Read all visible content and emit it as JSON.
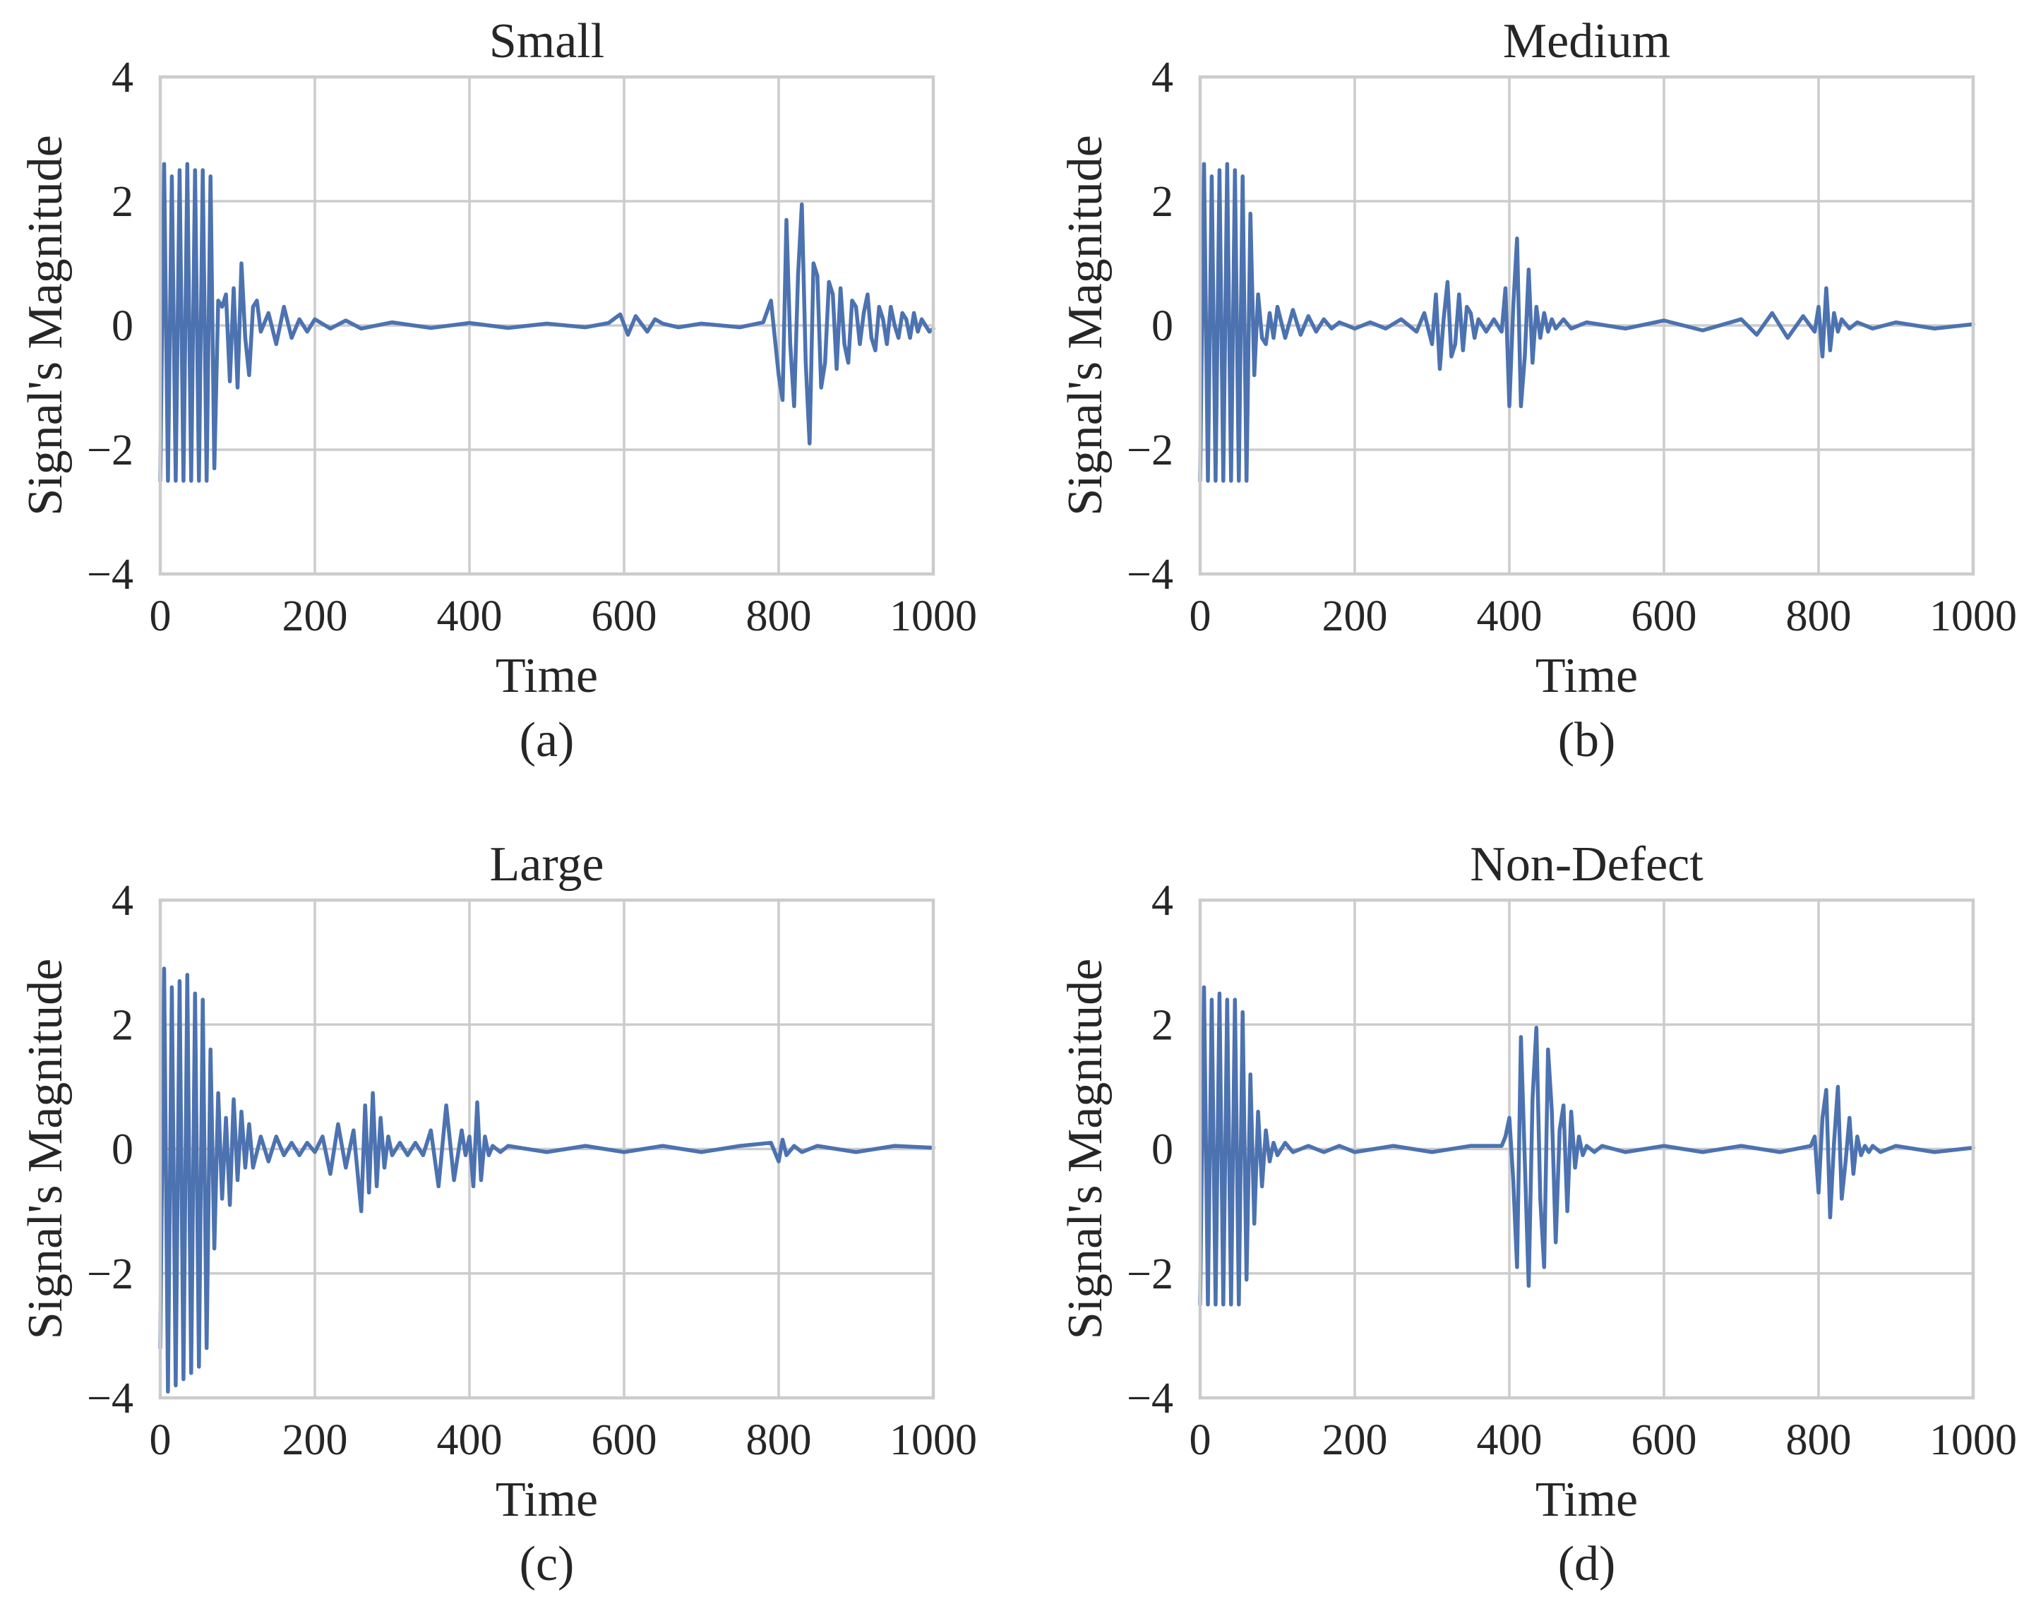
{
  "figure_title": "",
  "chart_data": [
    {
      "type": "line",
      "panel": "(a)",
      "title": "Small",
      "xlabel": "Time",
      "ylabel": "Signal's Magnitude",
      "xlim": [
        0,
        1000
      ],
      "ylim": [
        -4,
        4
      ],
      "xticks": [
        0,
        200,
        400,
        600,
        800,
        1000
      ],
      "yticks": [
        4,
        2,
        0,
        -2,
        -4
      ],
      "xtick_labels": [
        "0",
        "200",
        "400",
        "600",
        "800",
        "1000"
      ],
      "ytick_labels": [
        "4",
        "2",
        "0",
        "−2",
        "−4"
      ],
      "grid": true,
      "line_color": "#4c72b0",
      "series": [
        {
          "name": "signal",
          "x": [
            0,
            5,
            10,
            15,
            20,
            25,
            30,
            35,
            40,
            45,
            50,
            55,
            60,
            65,
            70,
            75,
            80,
            85,
            90,
            95,
            100,
            105,
            110,
            115,
            120,
            125,
            130,
            140,
            150,
            160,
            170,
            180,
            190,
            200,
            220,
            240,
            260,
            300,
            350,
            400,
            450,
            500,
            550,
            580,
            595,
            605,
            615,
            630,
            640,
            650,
            670,
            700,
            750,
            780,
            790,
            800,
            805,
            810,
            815,
            820,
            825,
            830,
            835,
            840,
            845,
            850,
            855,
            860,
            865,
            870,
            875,
            880,
            885,
            890,
            895,
            900,
            905,
            910,
            915,
            920,
            925,
            930,
            935,
            940,
            945,
            950,
            955,
            960,
            965,
            970,
            975,
            980,
            985,
            990,
            995,
            1000
          ],
          "y": [
            -2.5,
            2.6,
            -2.5,
            2.4,
            -2.5,
            2.5,
            -2.5,
            2.6,
            -2.5,
            2.5,
            -2.5,
            2.5,
            -2.5,
            2.4,
            -2.3,
            0.4,
            0.3,
            0.5,
            -0.9,
            0.6,
            -1.0,
            1.0,
            -0.2,
            -0.8,
            0.3,
            0.4,
            -0.1,
            0.2,
            -0.3,
            0.3,
            -0.2,
            0.1,
            -0.1,
            0.1,
            -0.05,
            0.08,
            -0.05,
            0.05,
            -0.04,
            0.04,
            -0.04,
            0.03,
            -0.03,
            0.04,
            0.18,
            -0.15,
            0.15,
            -0.1,
            0.1,
            0.03,
            -0.03,
            0.03,
            -0.03,
            0.05,
            0.4,
            -0.8,
            -1.2,
            1.7,
            -0.3,
            -1.3,
            0.8,
            1.95,
            -0.6,
            -1.9,
            1.0,
            0.8,
            -1.0,
            -0.6,
            0.7,
            0.5,
            -0.7,
            0.6,
            -0.3,
            -0.6,
            0.4,
            0.3,
            -0.3,
            0.2,
            0.5,
            -0.2,
            -0.4,
            0.3,
            0.1,
            -0.3,
            0.3,
            0.0,
            -0.2,
            0.2,
            0.1,
            -0.2,
            0.2,
            -0.1,
            0.1,
            0.0,
            -0.1,
            -0.05
          ]
        }
      ]
    },
    {
      "type": "line",
      "panel": "(b)",
      "title": "Medium",
      "xlabel": "Time",
      "ylabel": "Signal's Magnitude",
      "xlim": [
        0,
        1000
      ],
      "ylim": [
        -4,
        4
      ],
      "xticks": [
        0,
        200,
        400,
        600,
        800,
        1000
      ],
      "yticks": [
        4,
        2,
        0,
        -2,
        -4
      ],
      "xtick_labels": [
        "0",
        "200",
        "400",
        "600",
        "800",
        "1000"
      ],
      "ytick_labels": [
        "4",
        "2",
        "0",
        "−2",
        "−4"
      ],
      "grid": true,
      "line_color": "#4c72b0",
      "series": [
        {
          "name": "signal",
          "x": [
            0,
            5,
            10,
            15,
            20,
            25,
            30,
            35,
            40,
            45,
            50,
            55,
            60,
            65,
            70,
            75,
            80,
            85,
            90,
            95,
            100,
            110,
            120,
            130,
            140,
            150,
            160,
            170,
            180,
            200,
            220,
            240,
            260,
            280,
            290,
            300,
            305,
            310,
            315,
            320,
            325,
            330,
            335,
            340,
            345,
            350,
            355,
            360,
            370,
            380,
            390,
            395,
            400,
            405,
            410,
            415,
            420,
            425,
            430,
            435,
            440,
            445,
            450,
            455,
            460,
            470,
            480,
            500,
            550,
            600,
            650,
            700,
            720,
            740,
            760,
            780,
            795,
            800,
            805,
            810,
            815,
            820,
            825,
            830,
            840,
            850,
            870,
            900,
            950,
            1000
          ],
          "y": [
            -2.5,
            2.6,
            -2.5,
            2.4,
            -2.5,
            2.5,
            -2.5,
            2.6,
            -2.5,
            2.5,
            -2.5,
            2.4,
            -2.5,
            1.8,
            -0.8,
            0.5,
            -0.2,
            -0.3,
            0.2,
            -0.2,
            0.3,
            -0.2,
            0.25,
            -0.15,
            0.15,
            -0.1,
            0.1,
            -0.05,
            0.05,
            -0.05,
            0.05,
            -0.05,
            0.1,
            -0.1,
            0.2,
            -0.3,
            0.5,
            -0.7,
            0.1,
            0.7,
            -0.5,
            -0.3,
            0.5,
            -0.4,
            0.3,
            0.2,
            -0.2,
            0.1,
            -0.1,
            0.1,
            -0.1,
            0.6,
            -1.3,
            0.3,
            1.4,
            -1.3,
            -0.5,
            0.9,
            -0.6,
            0.3,
            -0.2,
            0.2,
            -0.1,
            0.1,
            -0.05,
            0.1,
            -0.05,
            0.05,
            -0.05,
            0.08,
            -0.08,
            0.1,
            -0.15,
            0.2,
            -0.2,
            0.15,
            -0.1,
            0.3,
            -0.5,
            0.6,
            -0.4,
            0.2,
            -0.1,
            0.1,
            -0.05,
            0.05,
            -0.05,
            0.05,
            -0.05,
            0.02
          ]
        }
      ]
    },
    {
      "type": "line",
      "panel": "(c)",
      "title": "Large",
      "xlabel": "Time",
      "ylabel": "Signal's Magnitude",
      "xlim": [
        0,
        1000
      ],
      "ylim": [
        -4,
        4
      ],
      "xticks": [
        0,
        200,
        400,
        600,
        800,
        1000
      ],
      "yticks": [
        4,
        2,
        0,
        -2,
        -4
      ],
      "xtick_labels": [
        "0",
        "200",
        "400",
        "600",
        "800",
        "1000"
      ],
      "ytick_labels": [
        "4",
        "2",
        "0",
        "−2",
        "−4"
      ],
      "grid": true,
      "line_color": "#4c72b0",
      "series": [
        {
          "name": "signal",
          "x": [
            0,
            5,
            10,
            15,
            20,
            25,
            30,
            35,
            40,
            45,
            50,
            55,
            60,
            65,
            70,
            75,
            80,
            85,
            90,
            95,
            100,
            105,
            110,
            115,
            120,
            130,
            140,
            150,
            160,
            170,
            180,
            190,
            200,
            210,
            220,
            230,
            240,
            250,
            260,
            265,
            270,
            275,
            280,
            285,
            290,
            295,
            300,
            310,
            320,
            330,
            340,
            350,
            360,
            370,
            380,
            390,
            395,
            400,
            405,
            410,
            415,
            420,
            425,
            430,
            440,
            450,
            500,
            550,
            600,
            650,
            700,
            750,
            790,
            800,
            805,
            810,
            820,
            830,
            850,
            900,
            950,
            1000
          ],
          "y": [
            -3.2,
            2.9,
            -3.9,
            2.6,
            -3.8,
            2.7,
            -3.7,
            2.8,
            -3.6,
            2.5,
            -3.5,
            2.4,
            -3.2,
            1.6,
            -1.6,
            0.9,
            -0.8,
            0.5,
            -0.9,
            0.8,
            -0.5,
            0.6,
            -0.3,
            0.4,
            -0.3,
            0.2,
            -0.2,
            0.2,
            -0.1,
            0.1,
            -0.1,
            0.1,
            -0.05,
            0.2,
            -0.4,
            0.4,
            -0.3,
            0.3,
            -1.0,
            0.7,
            -0.7,
            0.9,
            -0.6,
            0.5,
            -0.3,
            0.2,
            -0.1,
            0.1,
            -0.1,
            0.1,
            -0.1,
            0.3,
            -0.6,
            0.7,
            -0.5,
            0.3,
            -0.1,
            0.2,
            -0.6,
            0.75,
            -0.5,
            0.2,
            -0.1,
            0.05,
            -0.05,
            0.05,
            -0.05,
            0.05,
            -0.05,
            0.05,
            -0.05,
            0.05,
            0.1,
            -0.2,
            0.15,
            -0.1,
            0.05,
            -0.05,
            0.05,
            -0.05,
            0.05,
            0.02
          ]
        }
      ]
    },
    {
      "type": "line",
      "panel": "(d)",
      "title": "Non-Defect",
      "xlabel": "Time",
      "ylabel": "Signal's Magnitude",
      "xlim": [
        0,
        1000
      ],
      "ylim": [
        -4,
        4
      ],
      "xticks": [
        0,
        200,
        400,
        600,
        800,
        1000
      ],
      "yticks": [
        4,
        2,
        0,
        -2,
        -4
      ],
      "xtick_labels": [
        "0",
        "200",
        "400",
        "600",
        "800",
        "1000"
      ],
      "ytick_labels": [
        "4",
        "2",
        "0",
        "−2",
        "−4"
      ],
      "grid": true,
      "line_color": "#4c72b0",
      "series": [
        {
          "name": "signal",
          "x": [
            0,
            5,
            10,
            15,
            20,
            25,
            30,
            35,
            40,
            45,
            50,
            55,
            60,
            65,
            70,
            75,
            80,
            85,
            90,
            95,
            100,
            110,
            120,
            140,
            160,
            180,
            200,
            250,
            300,
            350,
            390,
            395,
            400,
            405,
            410,
            415,
            420,
            425,
            430,
            435,
            440,
            445,
            450,
            455,
            460,
            465,
            470,
            475,
            480,
            485,
            490,
            495,
            500,
            510,
            520,
            550,
            600,
            650,
            700,
            750,
            790,
            795,
            800,
            805,
            810,
            815,
            820,
            825,
            830,
            835,
            840,
            845,
            850,
            855,
            860,
            865,
            870,
            880,
            900,
            950,
            1000
          ],
          "y": [
            -2.5,
            2.6,
            -2.5,
            2.4,
            -2.5,
            2.5,
            -2.5,
            2.4,
            -2.5,
            2.4,
            -2.5,
            2.2,
            -2.1,
            1.2,
            -1.2,
            0.6,
            -0.6,
            0.3,
            -0.2,
            0.1,
            -0.1,
            0.1,
            -0.05,
            0.05,
            -0.05,
            0.05,
            -0.05,
            0.05,
            -0.05,
            0.05,
            0.05,
            0.2,
            0.5,
            -0.5,
            -1.9,
            1.8,
            -0.2,
            -2.2,
            0.8,
            1.95,
            -0.8,
            -1.9,
            1.6,
            0.6,
            -1.5,
            0.3,
            0.7,
            -1.0,
            0.6,
            -0.3,
            0.2,
            -0.1,
            0.05,
            -0.05,
            0.05,
            -0.05,
            0.05,
            -0.05,
            0.05,
            -0.05,
            0.05,
            0.2,
            -0.7,
            0.5,
            0.95,
            -1.1,
            0.1,
            1.0,
            -0.8,
            -0.2,
            0.5,
            -0.4,
            0.2,
            -0.1,
            0.05,
            -0.05,
            0.05,
            -0.05,
            0.05,
            -0.05,
            0.02
          ]
        }
      ]
    }
  ]
}
